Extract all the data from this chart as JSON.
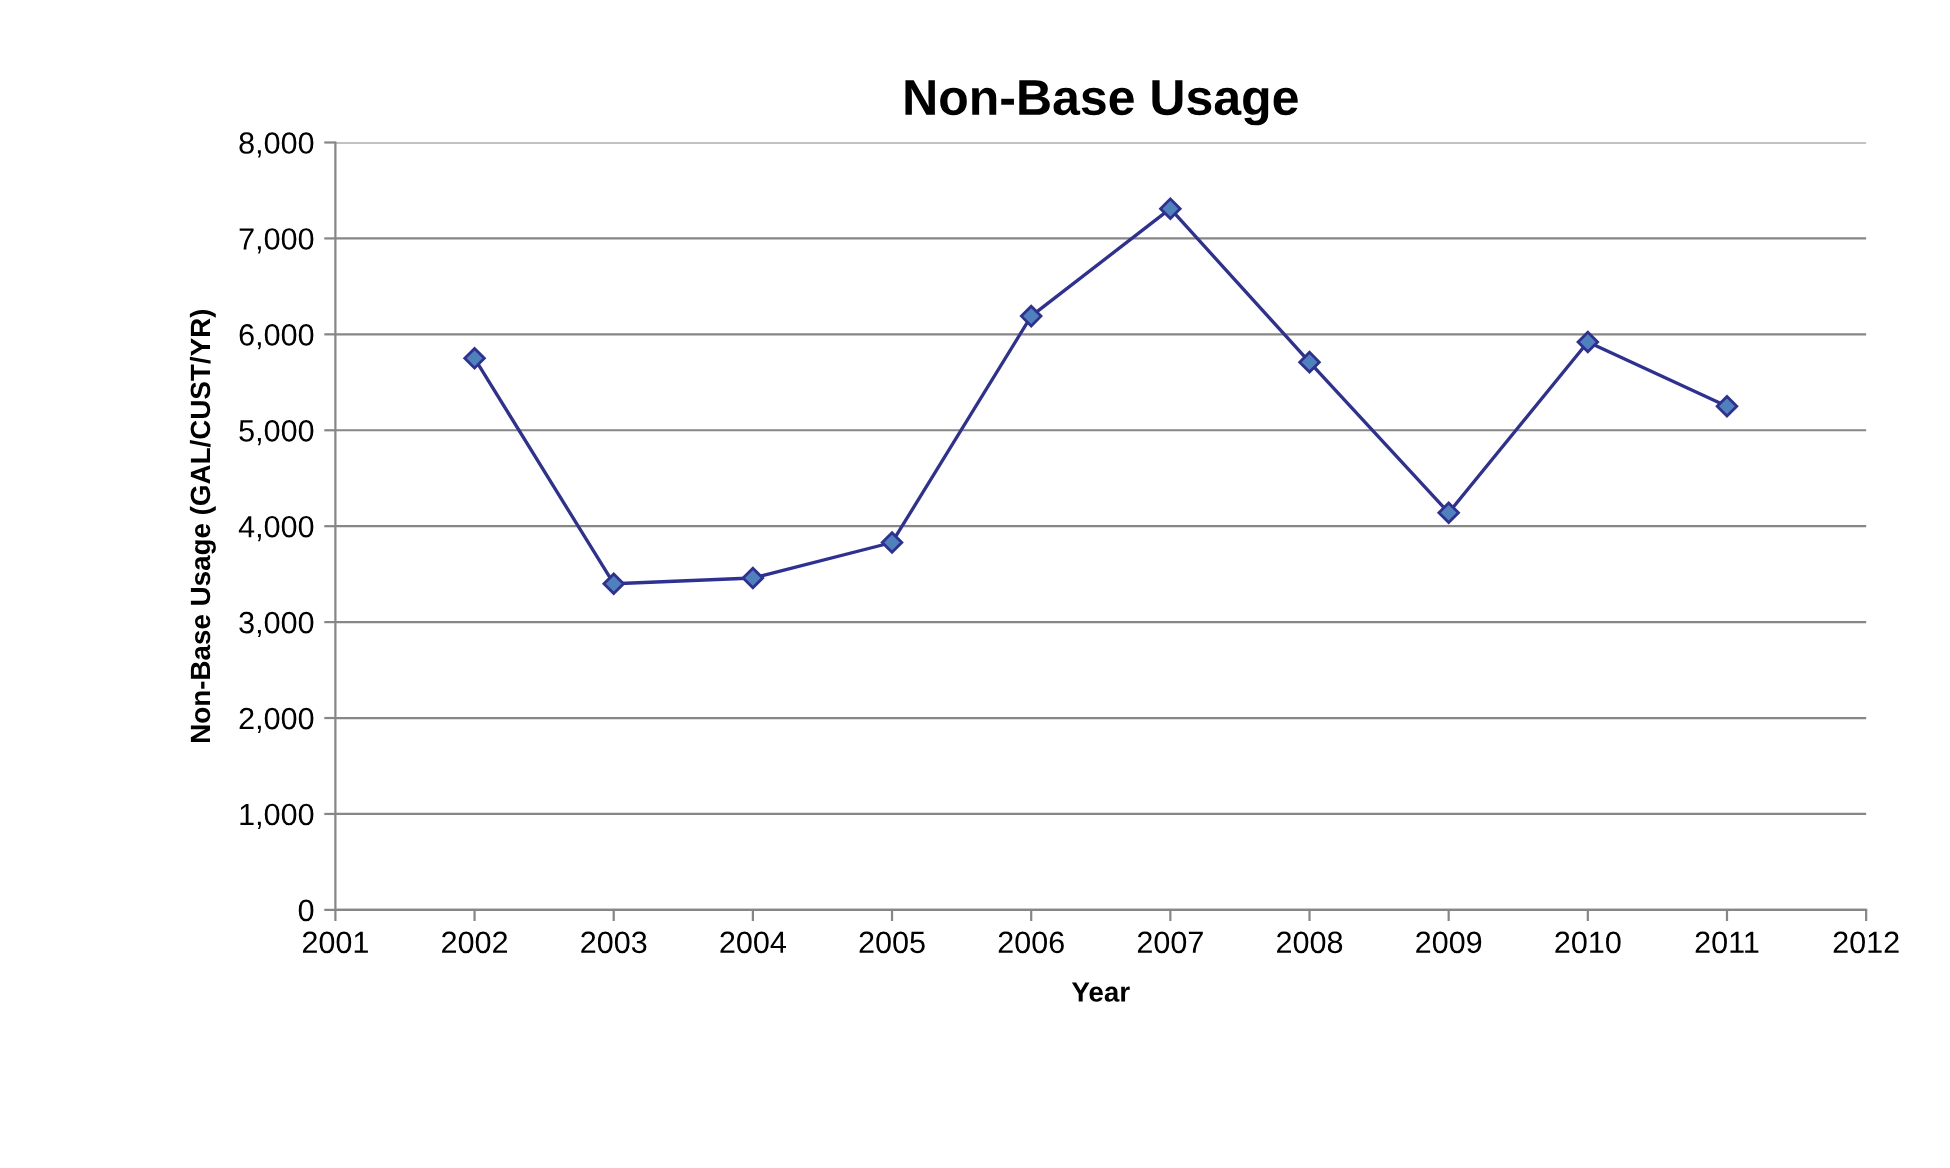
{
  "chart_data": {
    "type": "line",
    "title": "Non-Base Usage",
    "xlabel": "Year",
    "ylabel": "Non-Base Usage (GAL/CUST/YR)",
    "x": [
      2002,
      2003,
      2004,
      2005,
      2006,
      2007,
      2008,
      2009,
      2010,
      2011
    ],
    "series": [
      {
        "color": "#2e3192",
        "values": [
          5750,
          3400,
          3460,
          3830,
          6190,
          7310,
          5710,
          4140,
          5920,
          5250
        ]
      }
    ],
    "xlim": [
      2001,
      2012
    ],
    "xticks": [
      2001,
      2002,
      2003,
      2004,
      2005,
      2006,
      2007,
      2008,
      2009,
      2010,
      2011,
      2012
    ],
    "ylim": [
      0,
      8000
    ],
    "yticks": [
      {
        "value": 0,
        "label": "0"
      },
      {
        "value": 1000,
        "label": "1,000"
      },
      {
        "value": 2000,
        "label": "2,000"
      },
      {
        "value": 3000,
        "label": "3,000"
      },
      {
        "value": 4000,
        "label": "4,000"
      },
      {
        "value": 5000,
        "label": "5,000"
      },
      {
        "value": 6000,
        "label": "6,000"
      },
      {
        "value": 7000,
        "label": "7,000"
      },
      {
        "value": 8000,
        "label": "8,000"
      }
    ],
    "grid": "y",
    "marker": "diamond",
    "line_style": "solid",
    "legend": false
  }
}
